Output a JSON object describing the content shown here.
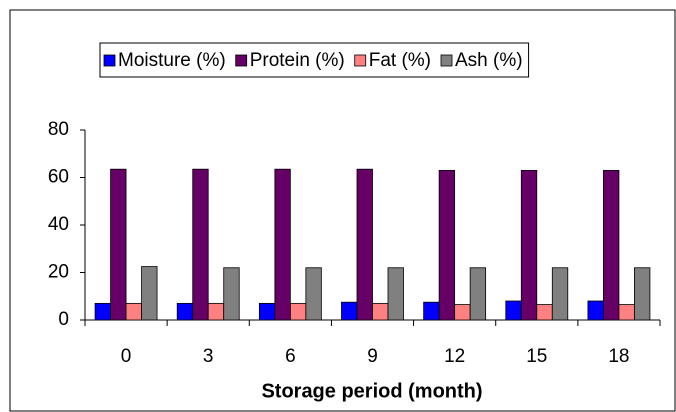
{
  "chart_data": {
    "type": "bar",
    "x_label": "Storage period (month)",
    "categories": [
      "0",
      "3",
      "6",
      "9",
      "12",
      "15",
      "18"
    ],
    "series": [
      {
        "name": "Moisture (%)",
        "color": "#0000ff",
        "values": [
          7,
          7,
          7,
          7.5,
          7.5,
          8,
          8
        ]
      },
      {
        "name": "Protein (%)",
        "color": "#660066",
        "values": [
          63.5,
          63.5,
          63.5,
          63.5,
          63,
          63,
          63
        ]
      },
      {
        "name": "Fat (%)",
        "color": "#ff8080",
        "values": [
          7,
          7,
          7,
          7,
          6.5,
          6.5,
          6.5
        ]
      },
      {
        "name": "Ash (%)",
        "color": "#808080",
        "values": [
          22.5,
          22,
          22,
          22,
          22,
          22,
          22
        ]
      }
    ],
    "ylim": [
      0,
      80
    ],
    "yticks": [
      0,
      20,
      40,
      60,
      80
    ],
    "grid": false,
    "legend": "top"
  }
}
